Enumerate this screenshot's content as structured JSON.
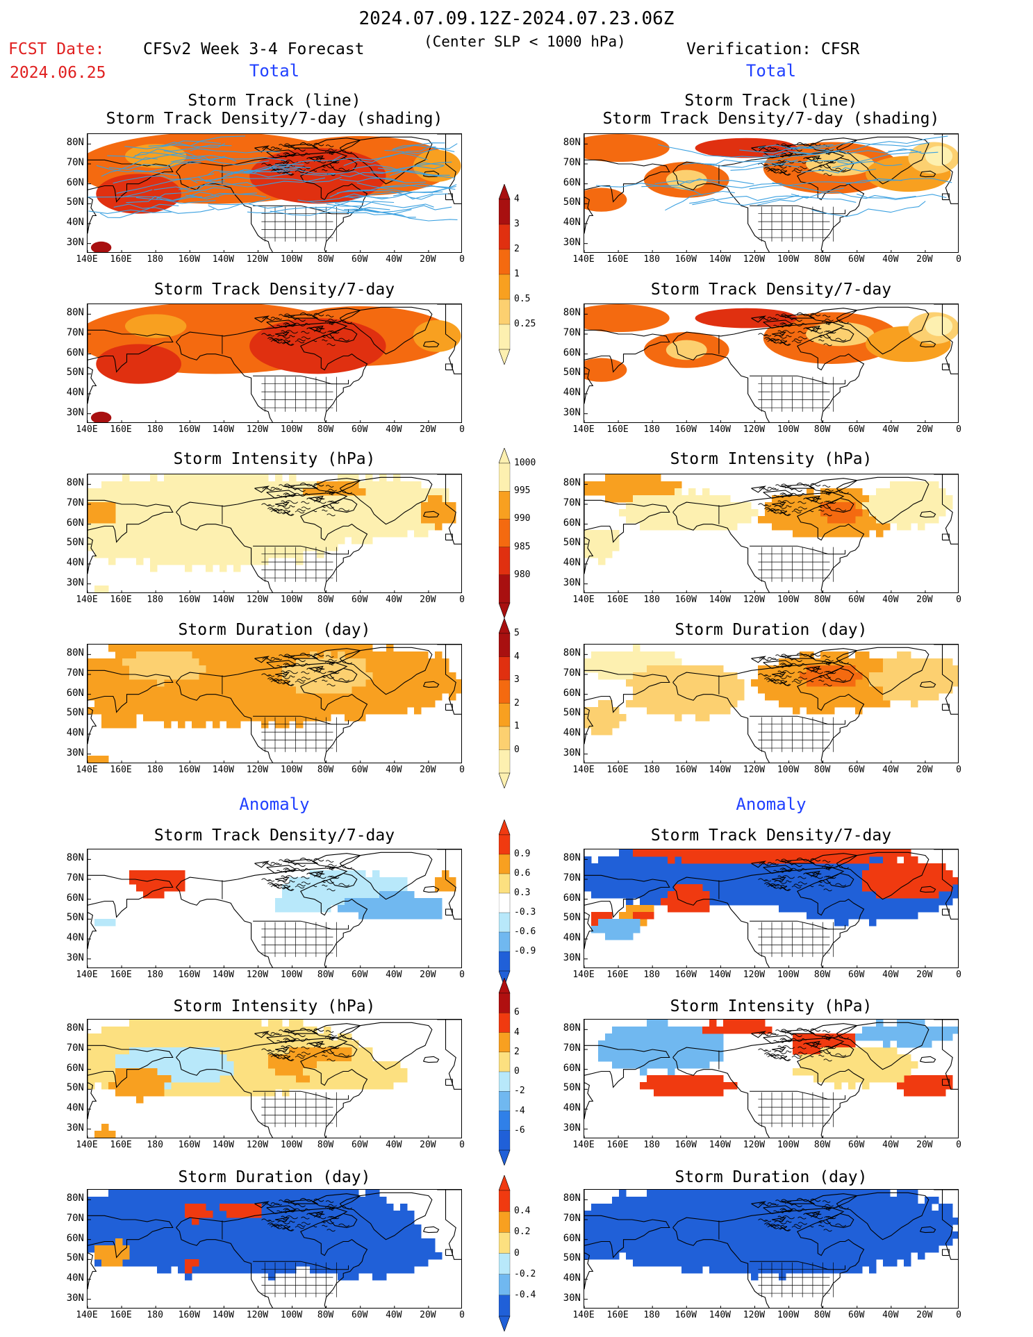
{
  "header": {
    "period": "2024.07.09.12Z-2024.07.23.06Z",
    "fcst_label": "FCST Date:",
    "fcst_date": "2024.06.25",
    "model": "CFSv2 Week 3-4 Forecast",
    "criterion": "(Center SLP < 1000 hPa)",
    "verification": "Verification: CFSR"
  },
  "sections": {
    "total": "Total",
    "anomaly": "Anomaly"
  },
  "panel_titles": {
    "track_line": "Storm Track (line)",
    "track_shading": "Storm Track Density/7-day (shading)",
    "density": "Storm Track Density/7-day",
    "intensity": "Storm Intensity (hPa)",
    "duration": "Storm Duration (day)"
  },
  "axes": {
    "lat_labels": [
      "80N",
      "70N",
      "60N",
      "50N",
      "40N",
      "30N"
    ],
    "lon_labels": [
      "140E",
      "160E",
      "180",
      "160W",
      "140W",
      "120W",
      "100W",
      "80W",
      "60W",
      "40W",
      "20W",
      "0"
    ]
  },
  "colorbars": {
    "density_total": {
      "labels": [
        "4",
        "3",
        "2",
        "1",
        "0.5",
        "0.25"
      ],
      "colors": [
        "#a81010",
        "#e03010",
        "#f46a10",
        "#f8a020",
        "#fcd070",
        "#fdf0b0"
      ]
    },
    "intensity_total": {
      "labels": [
        "1000",
        "995",
        "990",
        "985",
        "980"
      ],
      "colors": [
        "#fdf0b0",
        "#f8a020",
        "#f46a10",
        "#e03010",
        "#a81010"
      ]
    },
    "duration_total": {
      "labels": [
        "5",
        "4",
        "3",
        "2",
        "1",
        "0"
      ],
      "colors": [
        "#a81010",
        "#e03010",
        "#f46a10",
        "#f8a020",
        "#fcd070",
        "#fdf0b0"
      ]
    },
    "density_anom": {
      "labels": [
        "0.9",
        "0.6",
        "0.3",
        "-0.3",
        "-0.6",
        "-0.9"
      ],
      "colors": [
        "#f03a10",
        "#f8a020",
        "#fce080",
        "#ffffff",
        "#b8e8fa",
        "#70b8f0",
        "#2060d8"
      ]
    },
    "intensity_anom": {
      "labels": [
        "6",
        "4",
        "2",
        "0",
        "-2",
        "-4",
        "-6"
      ],
      "colors": [
        "#b01010",
        "#f03a10",
        "#f8a020",
        "#fce080",
        "#b8e8fa",
        "#70b8f0",
        "#3080e8",
        "#2060d8"
      ]
    },
    "duration_anom": {
      "labels": [
        "0.4",
        "0.2",
        "0",
        "-0.2",
        "-0.4"
      ],
      "colors": [
        "#f03a10",
        "#f8a020",
        "#fce080",
        "#b8e8fa",
        "#70b8f0",
        "#2060d8"
      ]
    }
  },
  "palette": {
    "land": "#000000",
    "track_line": "#3aa0e0"
  }
}
